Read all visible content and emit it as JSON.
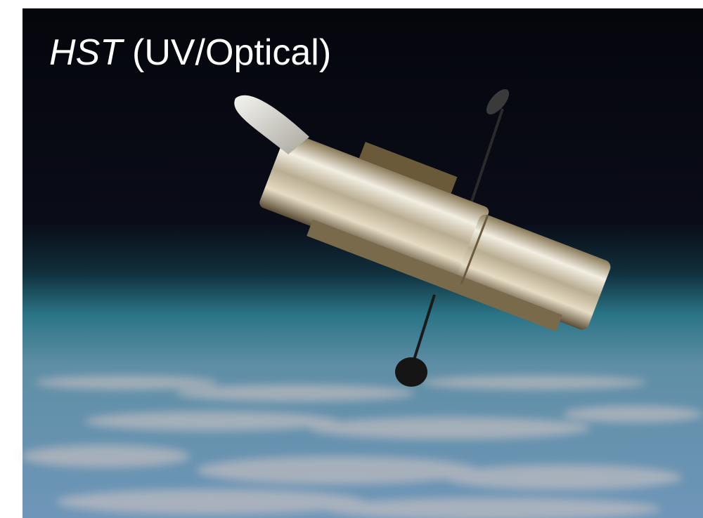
{
  "title": {
    "emphasis": "HST",
    "text": "(UV/Optical)"
  }
}
